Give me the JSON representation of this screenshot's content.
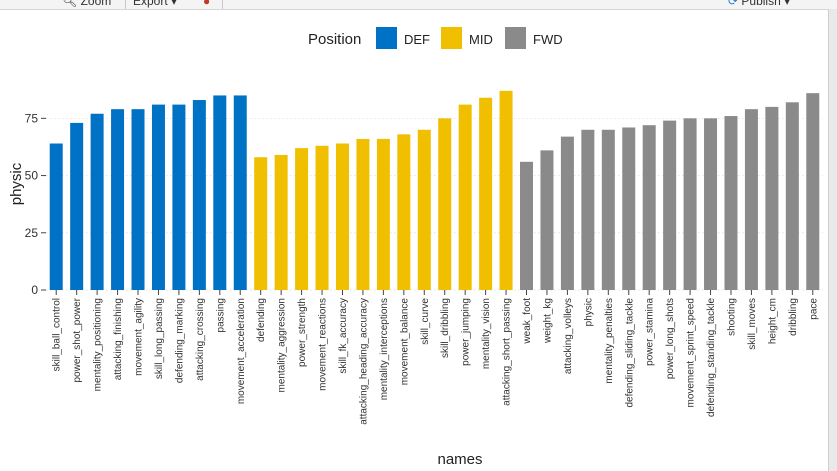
{
  "toolbar": {
    "zoom_label": "Zoom",
    "export_label": "Export",
    "publish_label": "Publish"
  },
  "colors": {
    "DEF": "#0072C6",
    "MID": "#F0C000",
    "FWD": "#8A8A8A",
    "grid": "#d9d9d9"
  },
  "chart_data": {
    "type": "bar",
    "xlabel": "names",
    "ylabel": "physic",
    "ylim": [
      0,
      90
    ],
    "yticks": [
      0,
      25,
      50,
      75
    ],
    "grid": true,
    "legend": {
      "title": "Position",
      "placement": "top",
      "entries": [
        "DEF",
        "MID",
        "FWD"
      ]
    },
    "categories": [
      "skill_ball_control",
      "power_shot_power",
      "mentality_positioning",
      "attacking_finishing",
      "movement_agility",
      "skill_long_passing",
      "defending_marking",
      "attacking_crossing",
      "passing",
      "movement_acceleration",
      "defending",
      "mentality_aggression",
      "power_strength",
      "movement_reactions",
      "skill_fk_accuracy",
      "attacking_heading_accuracy",
      "mentality_interceptions",
      "movement_balance",
      "skill_curve",
      "skill_dribbling",
      "power_jumping",
      "mentality_vision",
      "attacking_short_passing",
      "weak_foot",
      "weight_kg",
      "attacking_volleys",
      "physic",
      "mentality_penalties",
      "defending_sliding_tackle",
      "power_stamina",
      "power_long_shots",
      "movement_sprint_speed",
      "defending_standing_tackle",
      "shooting",
      "skill_moves",
      "height_cm",
      "dribbling",
      "pace"
    ],
    "values": [
      64,
      73,
      77,
      79,
      79,
      81,
      81,
      83,
      85,
      85,
      58,
      59,
      62,
      63,
      64,
      66,
      66,
      68,
      70,
      75,
      81,
      84,
      87,
      56,
      61,
      67,
      70,
      70,
      71,
      72,
      74,
      75,
      75,
      76,
      79,
      80,
      82,
      86
    ],
    "groups": [
      "DEF",
      "DEF",
      "DEF",
      "DEF",
      "DEF",
      "DEF",
      "DEF",
      "DEF",
      "DEF",
      "DEF",
      "MID",
      "MID",
      "MID",
      "MID",
      "MID",
      "MID",
      "MID",
      "MID",
      "MID",
      "MID",
      "MID",
      "MID",
      "MID",
      "FWD",
      "FWD",
      "FWD",
      "FWD",
      "FWD",
      "FWD",
      "FWD",
      "FWD",
      "FWD",
      "FWD",
      "FWD",
      "FWD",
      "FWD",
      "FWD",
      "FWD"
    ]
  }
}
